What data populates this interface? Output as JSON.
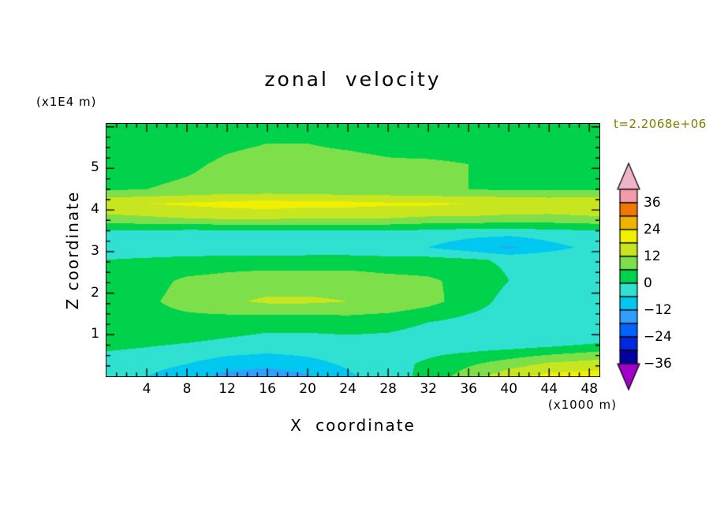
{
  "title": "zonal velocity",
  "time_label": "t=2.2068e+06",
  "x_axis": {
    "label": "X coordinate",
    "unit": "(x1000 m)",
    "range": [
      0,
      49
    ],
    "major_ticks": [
      4,
      8,
      12,
      16,
      20,
      24,
      28,
      32,
      36,
      40,
      44,
      48
    ],
    "major_every": 4,
    "minor_tick_step": 1
  },
  "z_axis": {
    "label": "Z coordinate",
    "unit": "(x1E4 m)",
    "range": [
      0,
      6.07
    ],
    "major_ticks": [
      1,
      2,
      3,
      4,
      5
    ],
    "major_every": 1,
    "minor_tick_step": 0.25
  },
  "colors": {
    "time_label": "#7d7d00",
    "frame": "#000000",
    "background": "#ffffff"
  },
  "chart_data": {
    "type": "heatmap",
    "title": "zonal velocity",
    "xlabel": "X coordinate (x1000 m)",
    "ylabel": "Z coordinate (x1E4 m)",
    "time": "t=2.2068e+06",
    "x": [
      0,
      4,
      8,
      12,
      16,
      20,
      24,
      28,
      32,
      36,
      40,
      44,
      49
    ],
    "z": [
      0,
      0.3,
      0.8,
      1.3,
      1.8,
      2.3,
      2.8,
      3.1,
      3.45,
      3.8,
      4.15,
      4.5,
      5.1,
      5.6,
      6.07
    ],
    "values": [
      [
        -4,
        -6,
        -9,
        -14,
        -16,
        -13,
        -7,
        -3,
        2,
        9,
        16,
        20,
        21
      ],
      [
        -3,
        -4,
        -6,
        -9,
        -10,
        -8,
        -5,
        -2,
        1,
        5,
        9,
        13,
        15
      ],
      [
        2,
        1,
        0,
        -1,
        -2,
        -2,
        -2,
        -2,
        -3,
        -4,
        -4,
        -3,
        0
      ],
      [
        3,
        4,
        4,
        3,
        2,
        2,
        3,
        2,
        0,
        -2,
        -3,
        -3,
        -1
      ],
      [
        3,
        5,
        8,
        11,
        13,
        13,
        12,
        11,
        8,
        3,
        -2,
        -3,
        -2
      ],
      [
        2,
        4,
        7,
        8,
        9,
        9,
        9,
        8,
        7,
        4,
        0,
        -2,
        -2
      ],
      [
        0,
        1,
        2,
        3,
        3,
        3,
        3,
        2,
        2,
        1,
        -1,
        -2,
        -2
      ],
      [
        -4,
        -5,
        -5,
        -6,
        -6,
        -5,
        -5,
        -5,
        -6,
        -9,
        -13,
        -8,
        -4
      ],
      [
        -2,
        -2,
        -3,
        -3,
        -3,
        -2,
        -2,
        -2,
        -3,
        -4,
        -4,
        -3,
        -2
      ],
      [
        10,
        11,
        12,
        13,
        13,
        12,
        12,
        12,
        11,
        11,
        10,
        10,
        11
      ],
      [
        17,
        18,
        19,
        20,
        21,
        20,
        20,
        19,
        19,
        18,
        18,
        17,
        18
      ],
      [
        5,
        6,
        7,
        8,
        8,
        8,
        7,
        7,
        6,
        6,
        5,
        5,
        5
      ],
      [
        3,
        4,
        5,
        7,
        8,
        8,
        8,
        7,
        7,
        6,
        4,
        3,
        3
      ],
      [
        2,
        3,
        3,
        5,
        6,
        6,
        5,
        4,
        3,
        3,
        3,
        2,
        2
      ],
      [
        2,
        2,
        3,
        3,
        4,
        4,
        4,
        3,
        3,
        3,
        2,
        2,
        2
      ]
    ],
    "levels": {
      "min": -36,
      "max": 42,
      "step": 6
    },
    "palette": {
      "below_color": "#a000c8",
      "band_colors": [
        "#0000a0",
        "#0028e0",
        "#0064ff",
        "#30a0ff",
        "#00c8f0",
        "#30e0d0",
        "#00d24b",
        "#7de04a",
        "#c8e620",
        "#f0f000",
        "#f0b400",
        "#f07800",
        "#f09caa"
      ],
      "above_color": "#f0b4c8"
    },
    "colorbar_labels": [
      36,
      24,
      12,
      0,
      -12,
      -24,
      -36
    ],
    "legend_position": "right",
    "grid": false
  }
}
